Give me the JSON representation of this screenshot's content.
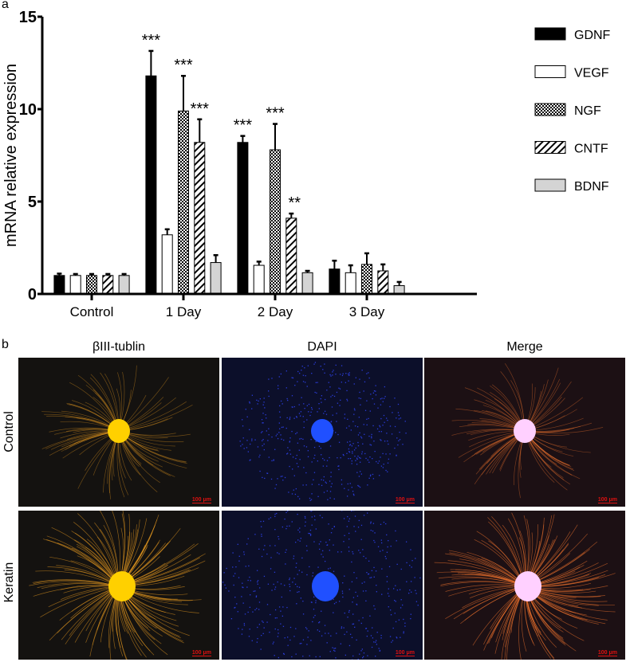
{
  "panel_a_label": "a",
  "panel_b_label": "b",
  "chart_data": {
    "type": "bar",
    "title": "",
    "xlabel": "",
    "ylabel": "mRNA relative expression",
    "ylim": [
      0,
      15
    ],
    "yticks": [
      "0",
      "5",
      "10",
      "15"
    ],
    "categories": [
      "Control",
      "1 Day",
      "2 Day",
      "3 Day"
    ],
    "legend_position": "right",
    "series": [
      {
        "name": "GDNF",
        "fill": "solid-black",
        "values": [
          1.0,
          11.8,
          8.2,
          1.35
        ],
        "errors": [
          0.1,
          1.35,
          0.35,
          0.45
        ]
      },
      {
        "name": "VEGF",
        "fill": "white",
        "values": [
          1.0,
          3.2,
          1.55,
          1.15
        ],
        "errors": [
          0.08,
          0.3,
          0.2,
          0.4
        ]
      },
      {
        "name": "NGF",
        "fill": "checker",
        "values": [
          1.0,
          9.9,
          7.8,
          1.6
        ],
        "errors": [
          0.08,
          1.9,
          1.4,
          0.6
        ]
      },
      {
        "name": "CNTF",
        "fill": "hatch",
        "values": [
          1.0,
          8.2,
          4.1,
          1.25
        ],
        "errors": [
          0.08,
          1.25,
          0.25,
          0.35
        ]
      },
      {
        "name": "BDNF",
        "fill": "light-gray",
        "values": [
          1.0,
          1.7,
          1.15,
          0.45
        ],
        "errors": [
          0.08,
          0.4,
          0.1,
          0.2
        ]
      }
    ],
    "annotations": [
      {
        "category": "1 Day",
        "series": "GDNF",
        "text": "***"
      },
      {
        "category": "1 Day",
        "series": "NGF",
        "text": "***"
      },
      {
        "category": "1 Day",
        "series": "CNTF",
        "text": "***"
      },
      {
        "category": "2 Day",
        "series": "GDNF",
        "text": "***"
      },
      {
        "category": "2 Day",
        "series": "NGF",
        "text": "***"
      },
      {
        "category": "2 Day",
        "series": "CNTF",
        "text": "**"
      }
    ]
  },
  "micrographs": {
    "columns": [
      "βIII-tublin",
      "DAPI",
      "Merge"
    ],
    "rows": [
      "Control",
      "Keratin"
    ],
    "scale_bar": "100 μm",
    "colors": {
      "tubulin": "#f0a020",
      "dapi": "#2040ff",
      "merge": "#ff7a30"
    }
  }
}
